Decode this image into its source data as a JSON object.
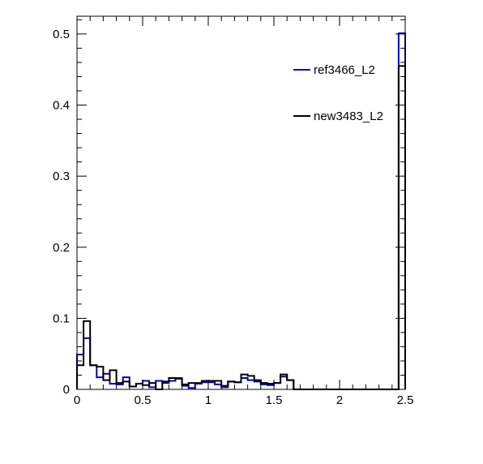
{
  "chart_data": {
    "type": "histogram",
    "title": "",
    "xlabel": "",
    "ylabel": "",
    "xlim": [
      0,
      2.5
    ],
    "ylim": [
      0,
      0.525
    ],
    "bin_width": 0.05,
    "x_ticks": [
      0,
      0.5,
      1,
      1.5,
      2,
      2.5
    ],
    "x_tick_labels": [
      "0",
      "0.5",
      "1",
      "1.5",
      "2",
      "2.5"
    ],
    "y_ticks": [
      0,
      0.1,
      0.2,
      0.3,
      0.4,
      0.5
    ],
    "y_tick_labels": [
      "0",
      "0.1",
      "0.2",
      "0.3",
      "0.4",
      "0.5"
    ],
    "grid": false,
    "legend_position": "top-right",
    "series": [
      {
        "name": "ref3466_L2",
        "color": "#0000cc",
        "values": [
          0.049,
          0.072,
          0.034,
          0.017,
          0.022,
          0.008,
          0.007,
          0.017,
          0.004,
          0.008,
          0.012,
          0.003,
          0.012,
          0.009,
          0.012,
          0.016,
          0.005,
          0.002,
          0.008,
          0.01,
          0.01,
          0.007,
          0.003,
          0.011,
          0.01,
          0.016,
          0.013,
          0.011,
          0.007,
          0.006,
          0.009,
          0.018,
          0.013,
          0.0,
          0.0,
          0.0,
          0.0,
          0.0,
          0.0,
          0.0,
          0.0,
          0.0,
          0.0,
          0.0,
          0.0,
          0.0,
          0.0,
          0.0,
          0.0,
          0.501
        ]
      },
      {
        "name": "new3483_L2",
        "color": "#000000",
        "values": [
          0.034,
          0.096,
          0.034,
          0.032,
          0.013,
          0.027,
          0.009,
          0.011,
          0.004,
          0.008,
          0.006,
          0.009,
          0.0,
          0.011,
          0.016,
          0.015,
          0.007,
          0.009,
          0.009,
          0.012,
          0.012,
          0.012,
          0.005,
          0.011,
          0.01,
          0.021,
          0.019,
          0.013,
          0.009,
          0.008,
          0.009,
          0.021,
          0.013,
          0.0,
          0.0,
          0.0,
          0.0,
          0.0,
          0.0,
          0.0,
          0.0,
          0.0,
          0.0,
          0.0,
          0.0,
          0.0,
          0.0,
          0.0,
          0.0,
          0.455
        ]
      }
    ]
  }
}
